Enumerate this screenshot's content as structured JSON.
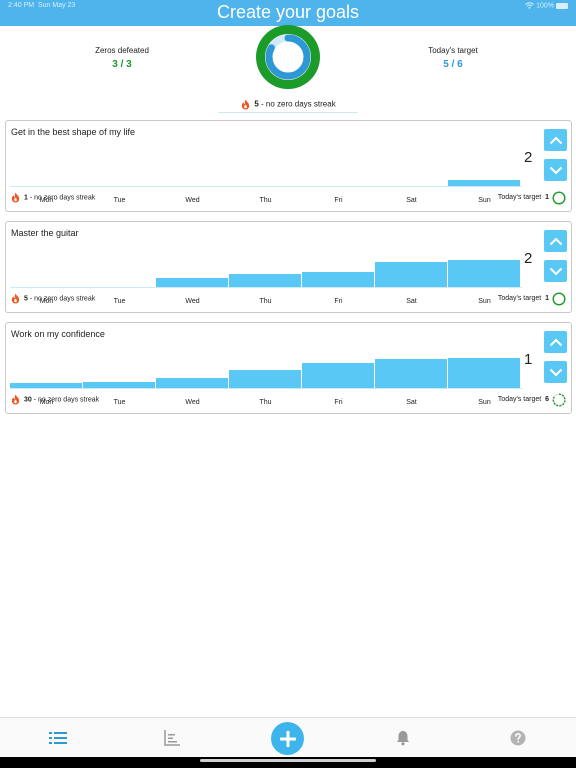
{
  "status_bar": {
    "time": "2:40 PM",
    "date": "Sun May 23",
    "battery": "100%"
  },
  "header": {
    "title": "Create your goals"
  },
  "summary": {
    "zeros_label": "Zeros defeated",
    "zeros_value": "3 / 3",
    "target_label": "Today's target",
    "target_value": "5 / 6",
    "streak_count": "5",
    "streak_text": " - no zero days streak",
    "ring_progress": 0.83
  },
  "colors": {
    "accent": "#4fb4ec",
    "bar": "#5ac8f5",
    "green": "#1c9a2a",
    "flame": "#f0561e"
  },
  "goals": [
    {
      "title": "Get in the best shape of my life",
      "count": "2",
      "streak_count": "1",
      "streak_text": " - no zero days streak",
      "target_label": "Today's target",
      "target_value": "1",
      "target_complete": true,
      "days": [
        "Mon",
        "Tue",
        "Wed",
        "Thu",
        "Fri",
        "Sat",
        "Sun"
      ],
      "values": [
        0,
        0,
        0,
        0,
        0,
        0,
        1
      ],
      "max": 5
    },
    {
      "title": "Master the guitar",
      "count": "2",
      "streak_count": "5",
      "streak_text": " - no zero days streak",
      "target_label": "Today's target",
      "target_value": "1",
      "target_complete": true,
      "days": [
        "Mon",
        "Tue",
        "Wed",
        "Thu",
        "Fri",
        "Sat",
        "Sun"
      ],
      "values": [
        0,
        0,
        1,
        1.4,
        1.6,
        2.6,
        2.8
      ],
      "max": 3.6
    },
    {
      "title": "Work on my confidence",
      "count": "1",
      "streak_count": "30",
      "streak_text": " - no zero days streak",
      "target_label": "Today's target",
      "target_value": "6",
      "target_complete": false,
      "days": [
        "Mon",
        "Tue",
        "Wed",
        "Thu",
        "Fri",
        "Sat",
        "Sun"
      ],
      "values": [
        0.6,
        0.7,
        1.1,
        1.9,
        2.6,
        3.0,
        3.1
      ],
      "max": 3.6
    }
  ],
  "tabs": {
    "list_icon": "list-icon",
    "stats_icon": "stats-icon",
    "add_icon": "plus-icon",
    "notifications_icon": "bell-icon",
    "help_icon": "question-icon"
  }
}
